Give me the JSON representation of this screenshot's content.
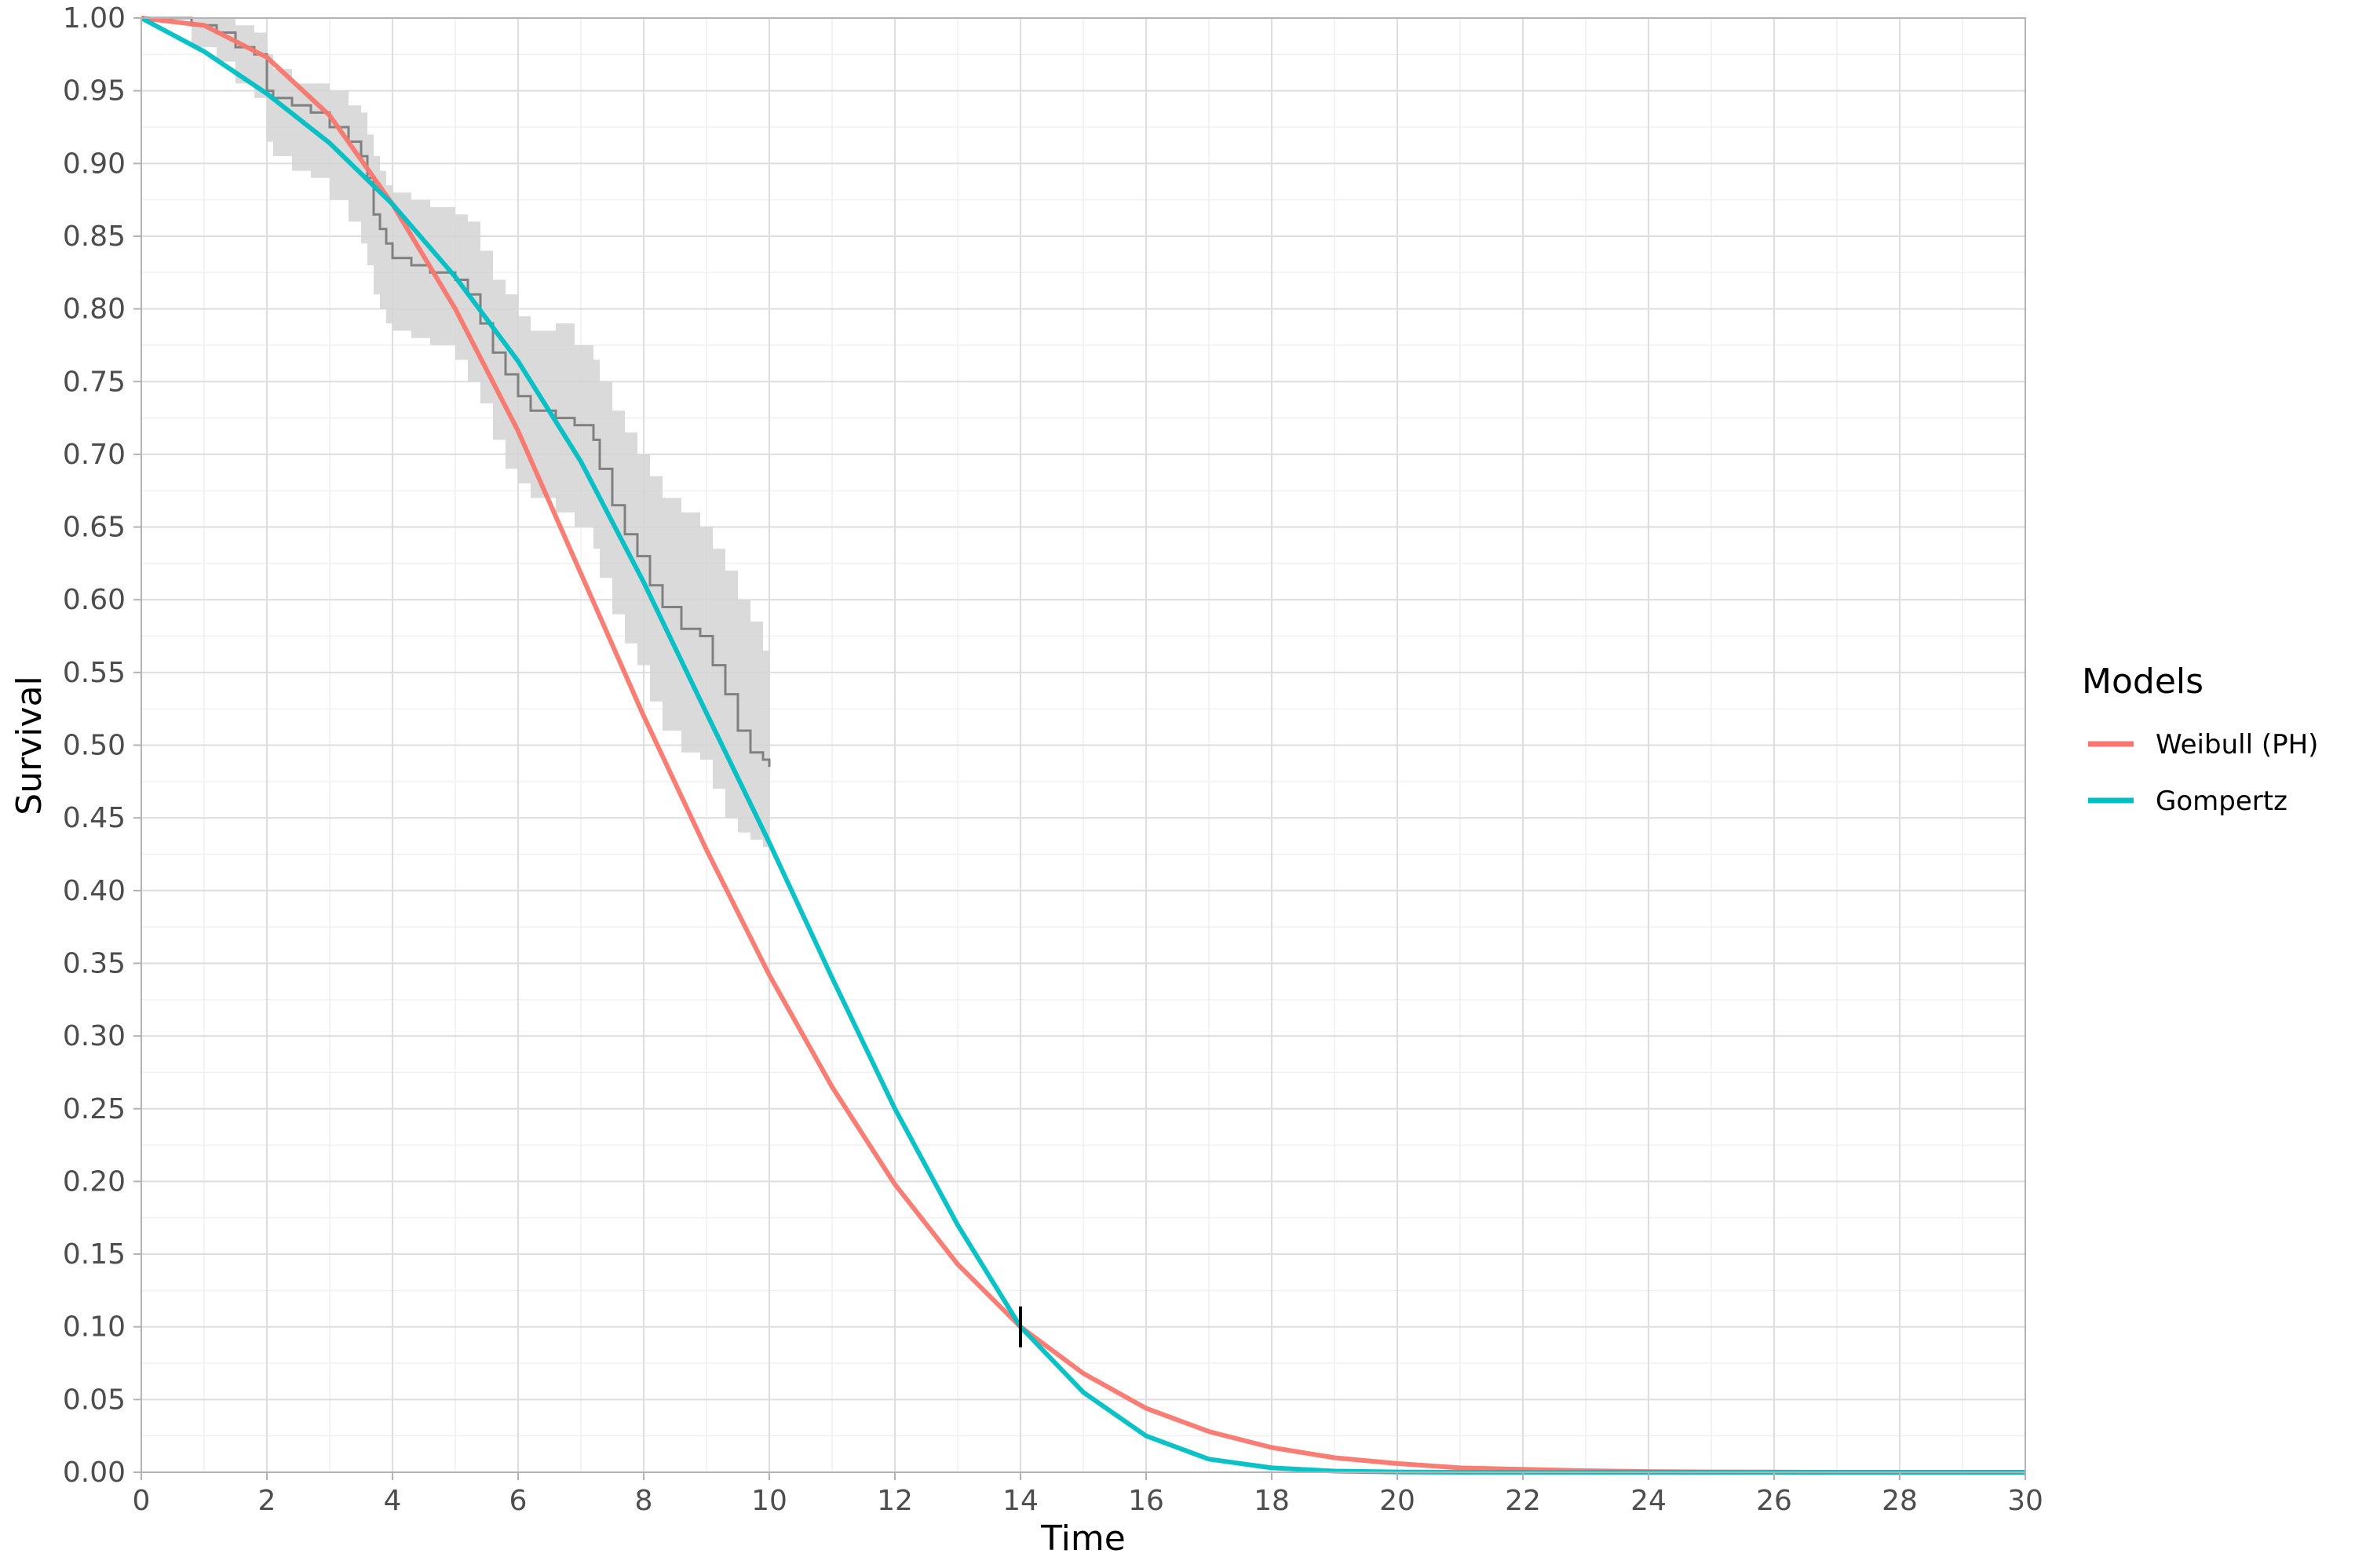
{
  "chart_data": {
    "type": "line",
    "xlabel": "Time",
    "ylabel": "Survival",
    "xlim": [
      0,
      30
    ],
    "ylim": [
      0,
      1
    ],
    "x_ticks": [
      "0",
      "2",
      "4",
      "6",
      "8",
      "10",
      "12",
      "14",
      "16",
      "18",
      "20",
      "22",
      "24",
      "26",
      "28",
      "30"
    ],
    "y_ticks": [
      "0.00",
      "0.05",
      "0.10",
      "0.15",
      "0.20",
      "0.25",
      "0.30",
      "0.35",
      "0.40",
      "0.45",
      "0.50",
      "0.55",
      "0.60",
      "0.65",
      "0.70",
      "0.75",
      "0.80",
      "0.85",
      "0.90",
      "0.95",
      "1.00"
    ],
    "grid": true,
    "legend": {
      "title": "Models",
      "position": "right",
      "entries": [
        "Weibull (PH)",
        "Gompertz"
      ]
    },
    "series": [
      {
        "name": "Weibull (PH)",
        "color": "#F8766D",
        "x": [
          0,
          1,
          2,
          3,
          4,
          5,
          6,
          7,
          8,
          9,
          10,
          11,
          12,
          13,
          14,
          15,
          16,
          17,
          18,
          19,
          20,
          21,
          22,
          23,
          24,
          25,
          26,
          27,
          28,
          29,
          30
        ],
        "y": [
          1.0,
          0.995,
          0.973,
          0.933,
          0.872,
          0.8,
          0.716,
          0.618,
          0.52,
          0.428,
          0.342,
          0.265,
          0.198,
          0.143,
          0.1,
          0.068,
          0.044,
          0.028,
          0.017,
          0.01,
          0.006,
          0.003,
          0.002,
          0.001,
          0.0005,
          0.0002,
          0.0001,
          0.0,
          0.0,
          0.0,
          0.0
        ]
      },
      {
        "name": "Gompertz",
        "color": "#00BFC4",
        "x": [
          0,
          1,
          2,
          3,
          4,
          5,
          6,
          7,
          8,
          9,
          10,
          11,
          12,
          13,
          14,
          15,
          16,
          17,
          18,
          19,
          20,
          21,
          22,
          23,
          24,
          25,
          26,
          27,
          28,
          29,
          30
        ],
        "y": [
          1.0,
          0.977,
          0.948,
          0.914,
          0.872,
          0.822,
          0.764,
          0.695,
          0.612,
          0.522,
          0.433,
          0.34,
          0.25,
          0.17,
          0.1,
          0.055,
          0.025,
          0.009,
          0.003,
          0.0008,
          0.0002,
          0.0,
          0.0,
          0.0,
          0.0,
          0.0,
          0.0,
          0.0,
          0.0,
          0.0,
          0.0
        ]
      }
    ],
    "kaplan_meier": {
      "color": "#808080",
      "band_color": "#d3d3d3",
      "x": [
        0,
        0.8,
        1.2,
        1.5,
        1.8,
        2.0,
        2.1,
        2.4,
        2.7,
        3.0,
        3.3,
        3.5,
        3.6,
        3.7,
        3.8,
        3.9,
        4.0,
        4.3,
        4.6,
        5.0,
        5.2,
        5.4,
        5.6,
        5.8,
        6.0,
        6.2,
        6.6,
        6.9,
        7.2,
        7.3,
        7.5,
        7.7,
        7.9,
        8.1,
        8.3,
        8.6,
        8.9,
        9.1,
        9.3,
        9.5,
        9.7,
        9.9,
        10.0
      ],
      "y": [
        1.0,
        0.995,
        0.99,
        0.98,
        0.975,
        0.95,
        0.945,
        0.94,
        0.935,
        0.925,
        0.915,
        0.905,
        0.89,
        0.865,
        0.855,
        0.845,
        0.835,
        0.83,
        0.825,
        0.82,
        0.81,
        0.79,
        0.77,
        0.755,
        0.74,
        0.73,
        0.725,
        0.72,
        0.71,
        0.69,
        0.665,
        0.645,
        0.63,
        0.61,
        0.595,
        0.58,
        0.575,
        0.555,
        0.535,
        0.51,
        0.495,
        0.49,
        0.485
      ],
      "lower": [
        1.0,
        0.98,
        0.97,
        0.955,
        0.945,
        0.915,
        0.905,
        0.895,
        0.89,
        0.875,
        0.86,
        0.845,
        0.83,
        0.81,
        0.8,
        0.79,
        0.785,
        0.78,
        0.775,
        0.765,
        0.75,
        0.735,
        0.71,
        0.69,
        0.68,
        0.67,
        0.66,
        0.65,
        0.635,
        0.615,
        0.59,
        0.57,
        0.555,
        0.53,
        0.51,
        0.495,
        0.49,
        0.47,
        0.45,
        0.44,
        0.435,
        0.43,
        0.43
      ],
      "upper": [
        1.0,
        1.0,
        1.0,
        0.995,
        0.99,
        0.975,
        0.965,
        0.955,
        0.955,
        0.95,
        0.94,
        0.935,
        0.92,
        0.905,
        0.895,
        0.885,
        0.88,
        0.875,
        0.87,
        0.865,
        0.86,
        0.84,
        0.82,
        0.81,
        0.795,
        0.785,
        0.79,
        0.775,
        0.765,
        0.75,
        0.73,
        0.715,
        0.7,
        0.685,
        0.67,
        0.66,
        0.65,
        0.635,
        0.62,
        0.6,
        0.585,
        0.565,
        0.555
      ]
    },
    "censor_mark": {
      "x": 14,
      "y": 0.1
    }
  }
}
